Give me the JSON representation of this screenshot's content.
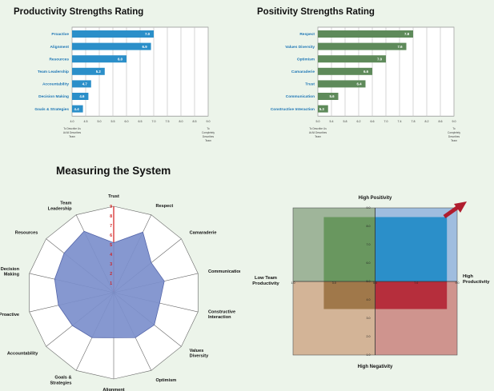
{
  "section_title": "Measuring the System",
  "colors": {
    "background": "#ecf4ea",
    "productivity_bar": "#2b8fc9",
    "positivity_bar": "#5e8a5a",
    "radar_fill": "#7c8fcc",
    "radar_axis_red": "#d21c1c",
    "q_top_left": "#9fb59a",
    "q_top_right": "#9fbddf",
    "q_bottom_left": "#d3b497",
    "q_bottom_right": "#cf948e",
    "inner_top_left": "#69975f",
    "inner_top_right": "#2b8fc9",
    "inner_bottom_left": "#a0784a",
    "inner_bottom_right": "#b62e3c",
    "arrow": "#b01d2e"
  },
  "chart_data": [
    {
      "type": "bar",
      "orientation": "horizontal",
      "title": "Productivity Strengths Rating",
      "categories": [
        "Proactive",
        "Alignment",
        "Resources",
        "Team Leadership",
        "Accountability",
        "Decision Making",
        "Goals & Strategies"
      ],
      "values": [
        7.0,
        6.9,
        6.0,
        5.2,
        4.7,
        4.6,
        4.4
      ],
      "xlim": [
        4.0,
        9.0
      ],
      "ticks": [
        "4.0",
        "4.5",
        "5.0",
        "5.5",
        "6.0",
        "6.5",
        "7.0",
        "7.5",
        "8.0",
        "8.5",
        "9.0"
      ],
      "axis_note_left": "To Describe Us At All Describes Team",
      "axis_note_right": "To Completely Describes Team"
    },
    {
      "type": "bar",
      "orientation": "horizontal",
      "title": "Positivity Strengths Rating",
      "categories": [
        "Respect",
        "Values Diversity",
        "Optimism",
        "Camaraderie",
        "Trust",
        "Communication",
        "Constructive Interaction"
      ],
      "values": [
        7.8,
        7.6,
        7.0,
        6.6,
        6.4,
        5.6,
        5.3
      ],
      "xlim": [
        5.0,
        9.0
      ],
      "ticks": [
        "5.0",
        "5.4",
        "5.8",
        "6.2",
        "6.6",
        "7.0",
        "7.4",
        "7.8",
        "8.2",
        "8.6",
        "9.0"
      ],
      "axis_note_left": "To Describe Us At All Describes Team",
      "axis_note_right": "To Completely Describes Team"
    },
    {
      "type": "radar",
      "axes": [
        "Trust",
        "Respect",
        "Camaraderie",
        "Communication",
        "Constructive Interaction",
        "Values Diversity",
        "Optimism",
        "Alignment",
        "Goals & Strategies",
        "Accountability",
        "Proactive",
        "Decision Making",
        "Resources",
        "Team Leadership"
      ],
      "values": [
        5.2,
        7.0,
        5.0,
        5.4,
        4.9,
        5.4,
        5.2,
        4.7,
        5.2,
        5.5,
        5.9,
        6.3,
        6.6,
        7.1
      ],
      "range": [
        0,
        9
      ],
      "scale_labels": [
        "1",
        "2",
        "3",
        "4",
        "5",
        "6",
        "7",
        "8",
        "9"
      ]
    },
    {
      "type": "quadrant",
      "label_top": "High Positivity",
      "label_bottom": "High Negativity",
      "label_left": "Low Team Productivity",
      "label_right": "High Productivity",
      "x_ticks": [
        "1.0",
        "3.0",
        "5.0",
        "7.0",
        "9.0"
      ],
      "y_ticks": [
        "9.0",
        "8.0",
        "7.0",
        "6.0",
        "5.0",
        "4.0",
        "3.0",
        "2.0",
        "1.0"
      ],
      "xlim": [
        1.0,
        9.0
      ],
      "ylim": [
        1.0,
        9.0
      ],
      "inner_box": {
        "x": [
          2.5,
          8.5
        ],
        "y": [
          3.5,
          8.5
        ]
      }
    }
  ]
}
